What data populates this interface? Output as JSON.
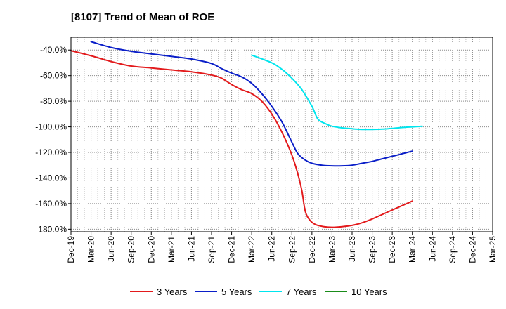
{
  "chart_data": {
    "type": "line",
    "title": "[8107]  Trend of Mean of ROE",
    "xlabel": "",
    "ylabel": "",
    "ylim": [
      -182,
      -30
    ],
    "yticks": [
      -40,
      -60,
      -80,
      -100,
      -120,
      -140,
      -160,
      -180
    ],
    "ytick_labels": [
      "-40.0%",
      "-60.0%",
      "-80.0%",
      "-100.0%",
      "-120.0%",
      "-140.0%",
      "-160.0%",
      "-180.0%"
    ],
    "xticks": [
      "Dec-19",
      "Mar-20",
      "Jun-20",
      "Sep-20",
      "Dec-20",
      "Mar-21",
      "Jun-21",
      "Sep-21",
      "Dec-21",
      "Mar-22",
      "Jun-22",
      "Sep-22",
      "Dec-22",
      "Mar-23",
      "Jun-23",
      "Sep-23",
      "Dec-23",
      "Mar-24",
      "Jun-24",
      "Sep-24",
      "Dec-24",
      "Mar-25"
    ],
    "grid": true,
    "legend_position": "bottom",
    "series": [
      {
        "name": "3 Years",
        "color": "#e31a1c",
        "points": [
          [
            0,
            -40.5
          ],
          [
            1,
            -44.5
          ],
          [
            2,
            -49
          ],
          [
            3,
            -52.5
          ],
          [
            4,
            -54
          ],
          [
            5,
            -55.5
          ],
          [
            6,
            -57
          ],
          [
            7,
            -59.5
          ],
          [
            7.5,
            -62
          ],
          [
            8,
            -67
          ],
          [
            8.5,
            -71
          ],
          [
            9,
            -74
          ],
          [
            9.5,
            -80
          ],
          [
            10,
            -90
          ],
          [
            10.5,
            -104
          ],
          [
            11,
            -122
          ],
          [
            11.3,
            -137
          ],
          [
            11.5,
            -150
          ],
          [
            11.67,
            -166
          ],
          [
            11.9,
            -173
          ],
          [
            12.2,
            -176.5
          ],
          [
            12.6,
            -178
          ],
          [
            13,
            -178.5
          ],
          [
            13.5,
            -178
          ],
          [
            14,
            -177
          ],
          [
            14.5,
            -175
          ],
          [
            15,
            -172
          ],
          [
            16,
            -165
          ],
          [
            17,
            -158
          ]
        ]
      },
      {
        "name": "5 Years",
        "color": "#0a1ec8",
        "points": [
          [
            1,
            -33.5
          ],
          [
            2,
            -38
          ],
          [
            3,
            -41
          ],
          [
            4,
            -43
          ],
          [
            5,
            -45
          ],
          [
            6,
            -47
          ],
          [
            7,
            -50.5
          ],
          [
            7.5,
            -54.5
          ],
          [
            8,
            -58
          ],
          [
            8.5,
            -61
          ],
          [
            9,
            -66
          ],
          [
            9.5,
            -74
          ],
          [
            10,
            -84
          ],
          [
            10.5,
            -96
          ],
          [
            11,
            -112
          ],
          [
            11.3,
            -121
          ],
          [
            11.67,
            -126
          ],
          [
            12,
            -128.5
          ],
          [
            12.5,
            -130
          ],
          [
            13,
            -130.5
          ],
          [
            13.5,
            -130.5
          ],
          [
            14,
            -130
          ],
          [
            14.5,
            -128.5
          ],
          [
            15,
            -127
          ],
          [
            15.5,
            -125
          ],
          [
            16,
            -123
          ],
          [
            16.5,
            -121
          ],
          [
            17,
            -119
          ]
        ]
      },
      {
        "name": "7 Years",
        "color": "#00e5ee",
        "points": [
          [
            9,
            -44
          ],
          [
            10,
            -50
          ],
          [
            10.5,
            -55
          ],
          [
            11,
            -62
          ],
          [
            11.5,
            -71
          ],
          [
            12,
            -84
          ],
          [
            12.3,
            -94
          ],
          [
            12.67,
            -97.5
          ],
          [
            13,
            -99.5
          ],
          [
            13.5,
            -100.8
          ],
          [
            14,
            -101.5
          ],
          [
            14.5,
            -102
          ],
          [
            15,
            -102
          ],
          [
            15.5,
            -101.8
          ],
          [
            16,
            -101.2
          ],
          [
            16.5,
            -100.5
          ],
          [
            17,
            -100
          ],
          [
            17.5,
            -99.5
          ]
        ]
      },
      {
        "name": "10 Years",
        "color": "#1a8c1a",
        "points": []
      }
    ]
  }
}
